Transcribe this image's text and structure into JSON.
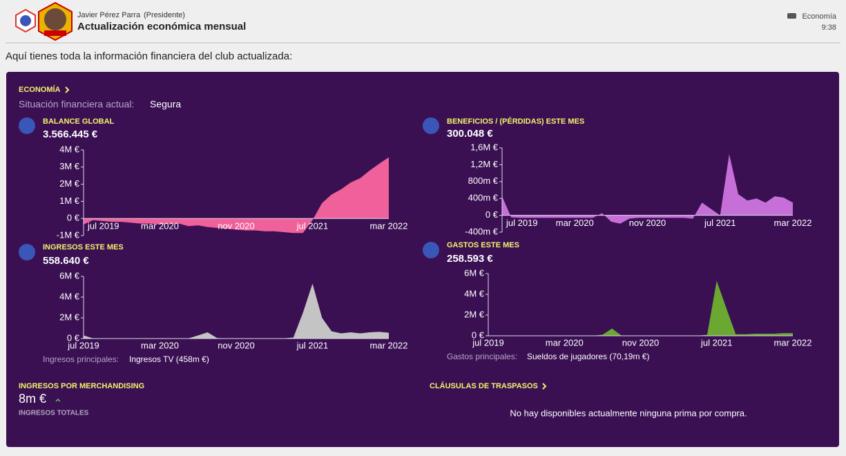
{
  "header": {
    "sender": "Javier Pérez Parra",
    "role": "(Presidente)",
    "title": "Actualización económica mensual",
    "category": "Economía",
    "time": "9:38"
  },
  "intro": "Aquí tienes toda la información financiera del club actualizada:",
  "panel": {
    "section_title": "ECONOMÍA",
    "status_label": "Situación financiera actual:",
    "status_value": "Segura",
    "months": [
      "jul 2019",
      null,
      null,
      null,
      null,
      null,
      null,
      null,
      "mar 2020",
      null,
      null,
      null,
      null,
      null,
      null,
      null,
      "nov 2020",
      null,
      null,
      null,
      null,
      null,
      null,
      null,
      "jul 2021",
      null,
      null,
      null,
      null,
      null,
      null,
      null,
      "mar 2022"
    ],
    "charts": [
      {
        "type": "area",
        "title": "BALANCE GLOBAL",
        "value_text": "3.566.445 €",
        "color": "#f0609a",
        "values": [
          -0.35,
          -0.1,
          -0.15,
          -0.2,
          -0.2,
          -0.25,
          -0.3,
          -0.3,
          -0.35,
          -0.3,
          -0.3,
          -0.45,
          -0.4,
          -0.5,
          -0.55,
          -0.6,
          -0.65,
          -0.7,
          -0.7,
          -0.75,
          -0.75,
          -0.8,
          -0.85,
          -0.85,
          -0.1,
          0.9,
          1.4,
          1.7,
          2.1,
          2.35,
          2.8,
          3.2,
          3.57
        ],
        "ylim": [
          -1,
          4
        ],
        "yticks": [
          {
            "value": -1,
            "label": "-1M €"
          },
          {
            "value": 0,
            "label": "0 €"
          },
          {
            "value": 1,
            "label": "1M €"
          },
          {
            "value": 2,
            "label": "2M €"
          },
          {
            "value": 3,
            "label": "3M €"
          },
          {
            "value": 4,
            "label": "4M €"
          }
        ]
      },
      {
        "type": "area",
        "title": "BENEFICIOS / (PÉRDIDAS) ESTE MES",
        "value_text": "300.048 €",
        "color": "#c66fd8",
        "values": [
          450,
          -50,
          -60,
          -60,
          -60,
          -60,
          -60,
          -60,
          -60,
          -60,
          -60,
          50,
          -150,
          -200,
          -80,
          -60,
          -60,
          -60,
          -60,
          -60,
          -60,
          -80,
          300,
          150,
          0,
          1450,
          500,
          350,
          400,
          300,
          450,
          420,
          300
        ],
        "ylim": [
          -400,
          1600
        ],
        "yticks": [
          {
            "value": -400,
            "label": "-400m €"
          },
          {
            "value": 0,
            "label": "0 €"
          },
          {
            "value": 400,
            "label": "400m €"
          },
          {
            "value": 800,
            "label": "800m €"
          },
          {
            "value": 1200,
            "label": "1,2M €"
          },
          {
            "value": 1600,
            "label": "1,6M €"
          }
        ]
      },
      {
        "type": "area",
        "title": "INGRESOS ESTE MES",
        "value_text": "558.640 €",
        "color": "#c4c4c4",
        "values": [
          0.3,
          0.02,
          0.02,
          0.02,
          0.02,
          0.02,
          0.02,
          0.02,
          0.02,
          0.02,
          0.02,
          0.02,
          0.3,
          0.6,
          0.05,
          0.02,
          0.02,
          0.02,
          0.02,
          0.02,
          0.02,
          0.02,
          0.1,
          2.5,
          5.3,
          2.0,
          0.7,
          0.5,
          0.6,
          0.5,
          0.6,
          0.65,
          0.56
        ],
        "ylim": [
          0,
          6
        ],
        "yticks": [
          {
            "value": 0,
            "label": "0 €"
          },
          {
            "value": 2,
            "label": "2M €"
          },
          {
            "value": 4,
            "label": "4M €"
          },
          {
            "value": 6,
            "label": "6M €"
          }
        ],
        "note_label": "Ingresos principales:",
        "note_value": "Ingresos TV (458m €)"
      },
      {
        "type": "area",
        "title": "GASTOS ESTE MES",
        "value_text": "258.593 €",
        "color": "#6aa832",
        "values": [
          0.02,
          0.02,
          0.02,
          0.02,
          0.02,
          0.02,
          0.02,
          0.02,
          0.02,
          0.02,
          0.02,
          0.02,
          0.1,
          0.7,
          0.02,
          0.02,
          0.02,
          0.02,
          0.02,
          0.02,
          0.02,
          0.02,
          0.02,
          0.1,
          5.3,
          2.7,
          0.15,
          0.15,
          0.2,
          0.2,
          0.2,
          0.26,
          0.26
        ],
        "ylim": [
          0,
          6
        ],
        "yticks": [
          {
            "value": 0,
            "label": "0 €"
          },
          {
            "value": 2,
            "label": "2M €"
          },
          {
            "value": 4,
            "label": "4M €"
          },
          {
            "value": 6,
            "label": "6M €"
          }
        ],
        "note_label": "Gastos principales:",
        "note_value": "Sueldos de jugadores (70,19m €)"
      }
    ],
    "merch": {
      "title": "INGRESOS POR MERCHANDISING",
      "value": "8m €",
      "caption": "INGRESOS TOTALES"
    },
    "transfers": {
      "title": "CLÁUSULAS DE TRASPASOS",
      "message": "No hay disponibles actualmente ninguna prima por compra."
    }
  }
}
